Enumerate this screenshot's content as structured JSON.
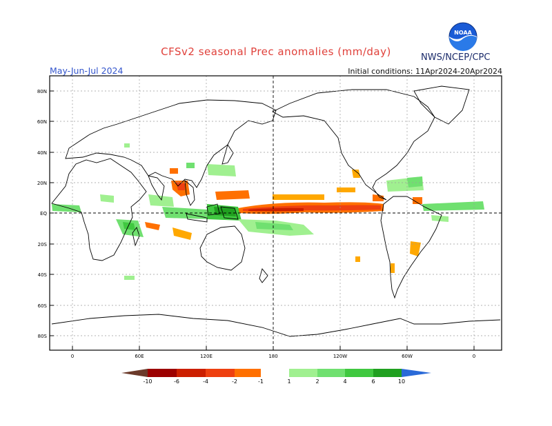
{
  "header": {
    "title": "CFSv2 seasonal Prec anomalies (mm/day)",
    "season": "May-Jun-Jul 2024",
    "initial_conditions": "Initial conditions: 11Apr2024-20Apr2024",
    "agency": "NWS/NCEP/CPC",
    "logo_text": "NOAA"
  },
  "map": {
    "lat_labels": [
      "80N",
      "60N",
      "40N",
      "20N",
      "EQ",
      "20S",
      "40S",
      "60S",
      "80S"
    ],
    "lon_labels": [
      "0",
      "60E",
      "120E",
      "180",
      "120W",
      "60W",
      "0"
    ]
  },
  "colorbar": {
    "labels": [
      "-10",
      "-6",
      "-4",
      "-2",
      "-1",
      "1",
      "2",
      "4",
      "6",
      "10"
    ],
    "colors": {
      "below_min": "#6b3a2a",
      "neg10": "#9c0000",
      "neg6": "#cc1f00",
      "neg4": "#ee4010",
      "neg2": "#ff7000",
      "neg1": "#ffa800",
      "pos1": "#a0f090",
      "pos2": "#70e070",
      "pos4": "#40c840",
      "pos6": "#20a020",
      "pos10": "#108810",
      "above_max": "#2a6ad8"
    }
  }
}
